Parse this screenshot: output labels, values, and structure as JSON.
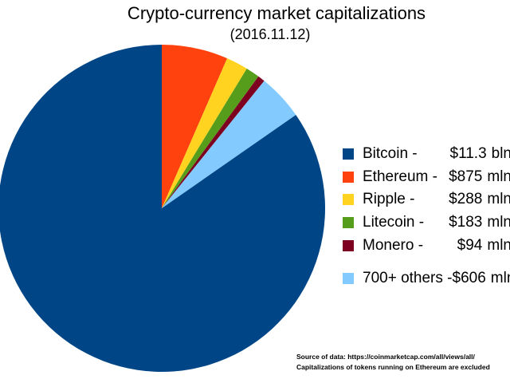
{
  "chart_data": {
    "type": "pie",
    "title": "Crypto-currency market capitalizations",
    "subtitle": "(2016.11.12)",
    "legend_position": "right",
    "slices": [
      {
        "name": "Bitcoin",
        "legend_label": "Bitcoin -",
        "value_mln_usd": 11300,
        "display_value": "$11.3",
        "display_unit": "bln",
        "color": "#004586"
      },
      {
        "name": "Ethereum",
        "legend_label": "Ethereum -",
        "value_mln_usd": 875,
        "display_value": "$875",
        "display_unit": "mln",
        "color": "#FF420E"
      },
      {
        "name": "Ripple",
        "legend_label": "Ripple -",
        "value_mln_usd": 288,
        "display_value": "$288",
        "display_unit": "mln",
        "color": "#FFD320"
      },
      {
        "name": "Litecoin",
        "legend_label": "Litecoin -",
        "value_mln_usd": 183,
        "display_value": "$183",
        "display_unit": "mln",
        "color": "#579D1C"
      },
      {
        "name": "Monero",
        "legend_label": "Monero -",
        "value_mln_usd": 94,
        "display_value": "$94",
        "display_unit": "mln",
        "color": "#7E0021"
      },
      {
        "name": "700+ others",
        "legend_label": "700+ others -",
        "value_mln_usd": 606,
        "display_value": "$606",
        "display_unit": "mln",
        "color": "#83CAFF"
      }
    ],
    "draw_order_clockwise_from_top": [
      "Ethereum",
      "Ripple",
      "Litecoin",
      "Monero",
      "700+ others",
      "Bitcoin"
    ],
    "legend_gap_before": [
      "700+ others"
    ]
  },
  "source_note": {
    "line1": "Source of data: https://coinmarketcap.com/all/views/all/",
    "line2": "Capitalizations of tokens running on Ethereum are excluded"
  }
}
